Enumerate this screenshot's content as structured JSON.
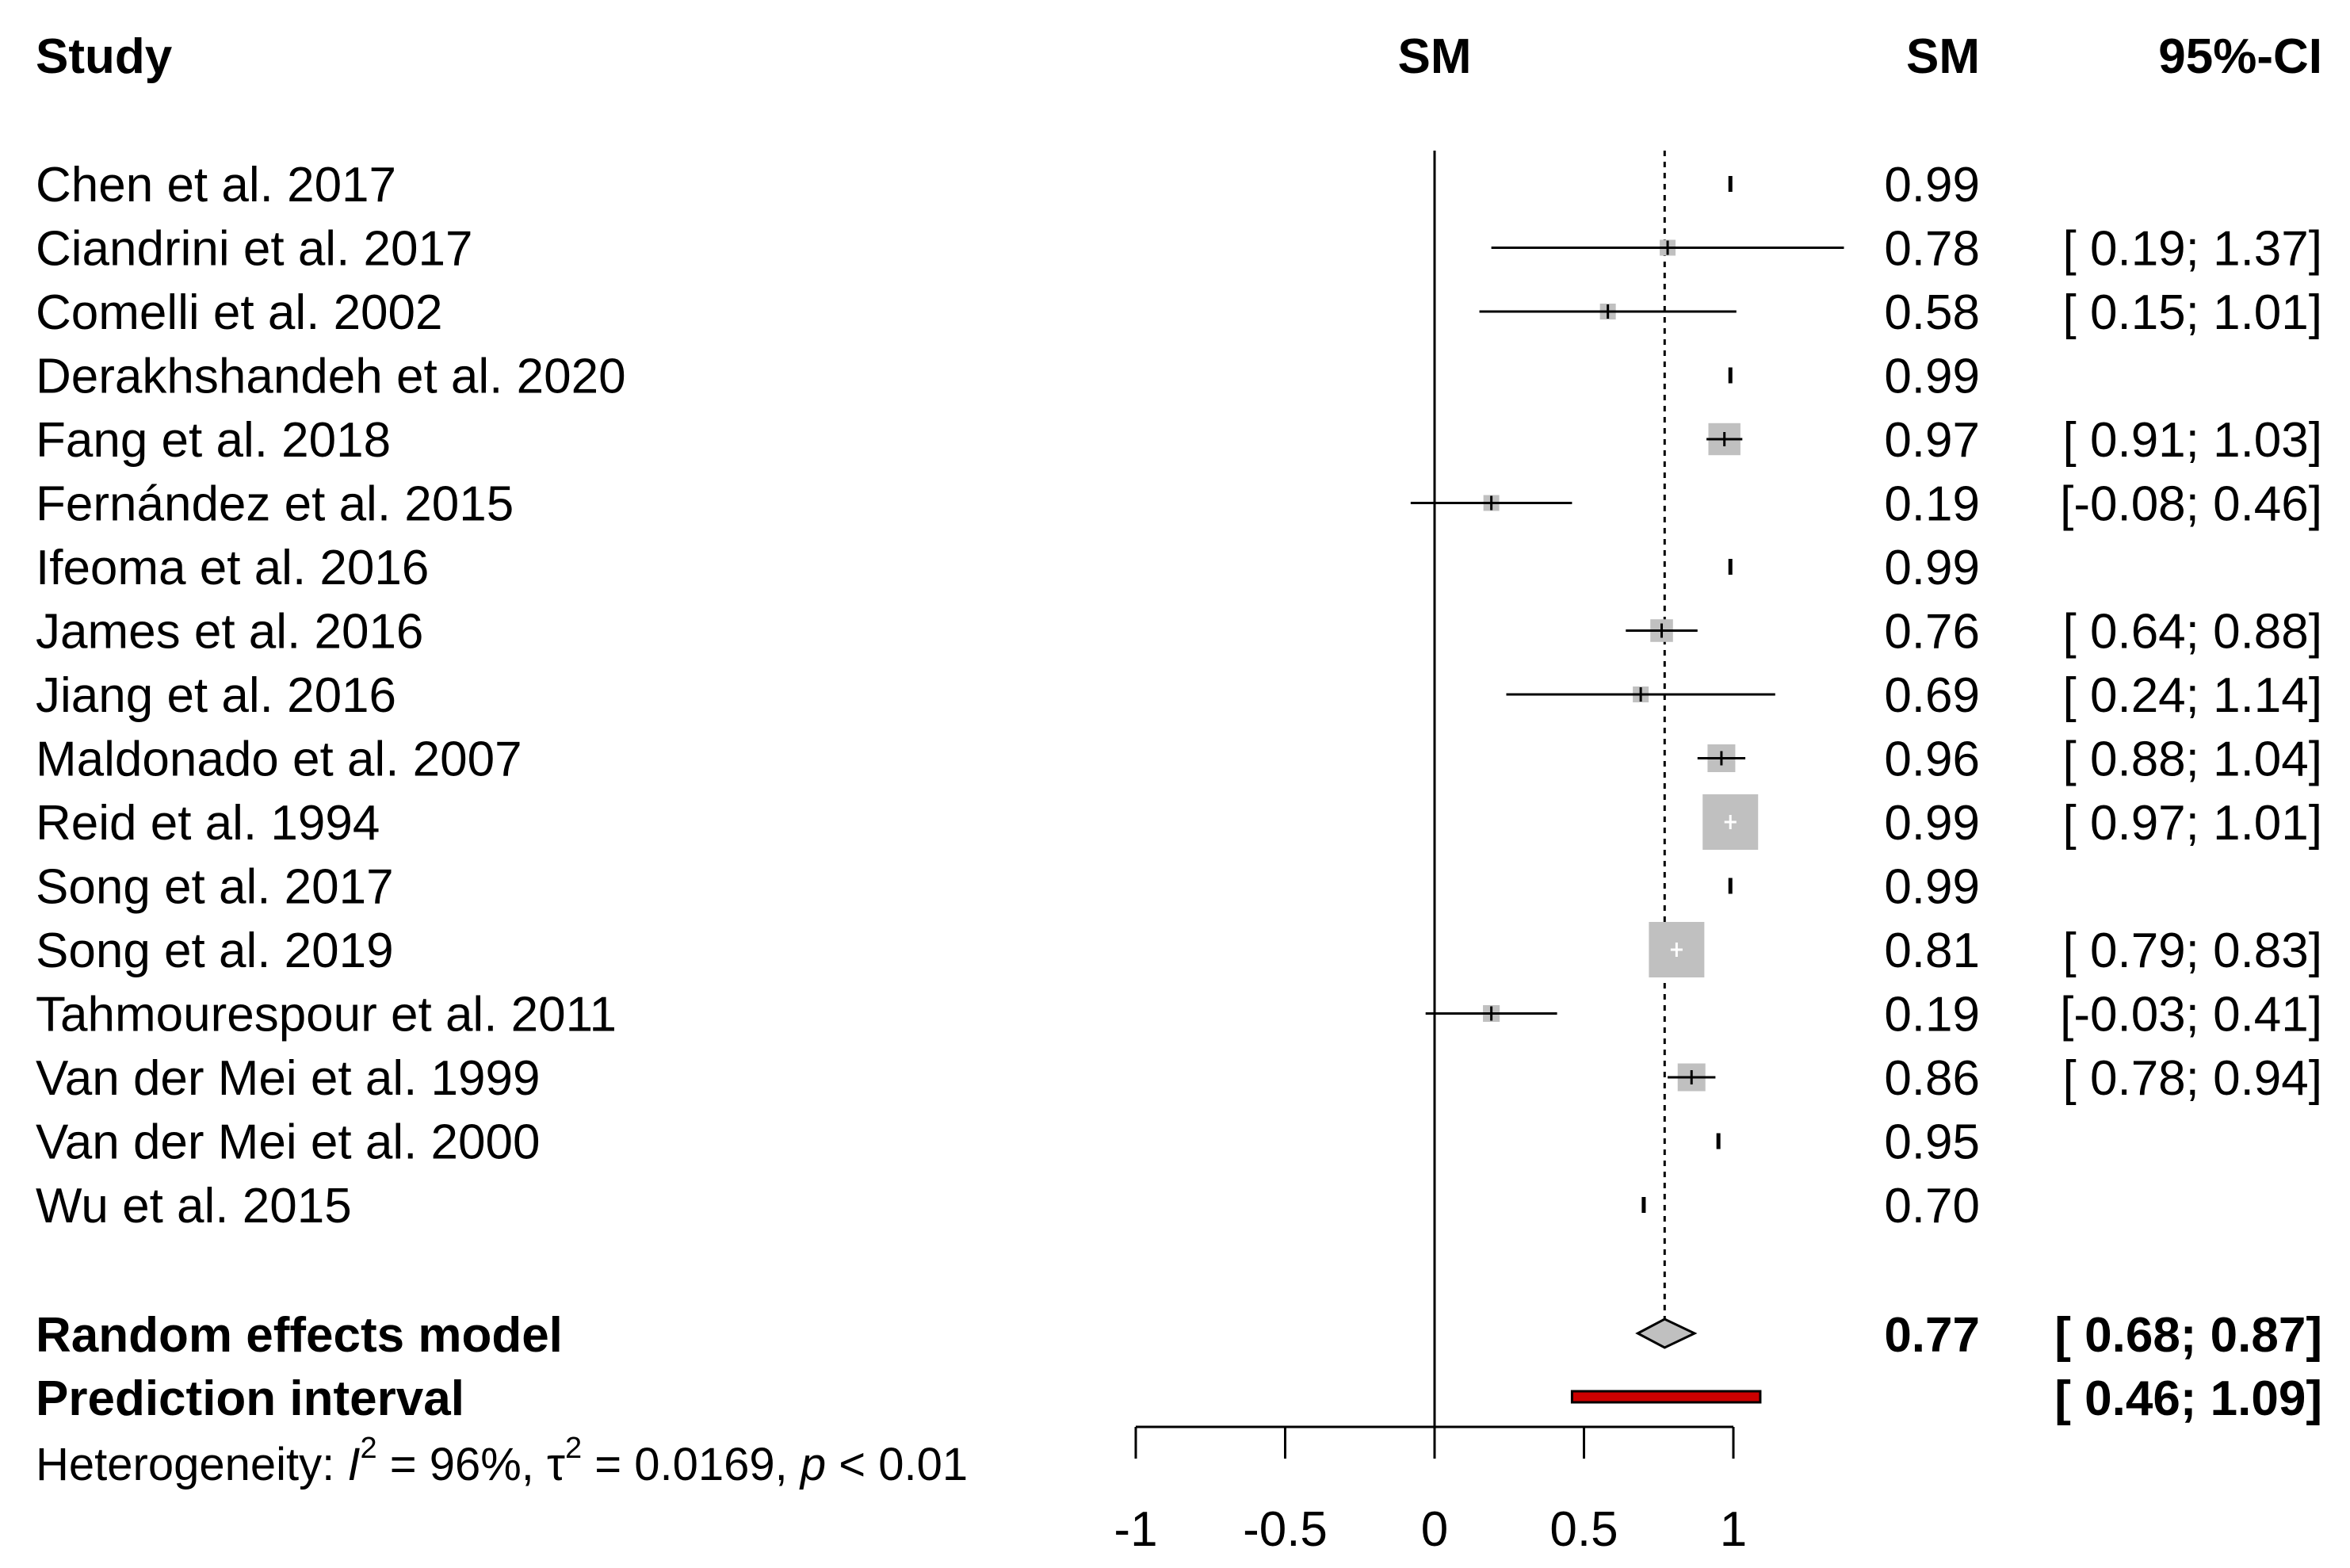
{
  "chart_data": {
    "type": "forest",
    "headers": {
      "study": "Study",
      "plot": "SM",
      "estimate": "SM",
      "ci": "95%-CI"
    },
    "studies": [
      {
        "label": "Chen et al. 2017",
        "est": 0.99,
        "lo": null,
        "hi": null,
        "est_text": "0.99",
        "ci_text": ""
      },
      {
        "label": "Ciandrini et al. 2017",
        "est": 0.78,
        "lo": 0.19,
        "hi": 1.37,
        "est_text": "0.78",
        "ci_text": "[ 0.19; 1.37]"
      },
      {
        "label": "Comelli et al. 2002",
        "est": 0.58,
        "lo": 0.15,
        "hi": 1.01,
        "est_text": "0.58",
        "ci_text": "[ 0.15; 1.01]"
      },
      {
        "label": "Derakhshandeh et al. 2020",
        "est": 0.99,
        "lo": null,
        "hi": null,
        "est_text": "0.99",
        "ci_text": ""
      },
      {
        "label": "Fang et al. 2018",
        "est": 0.97,
        "lo": 0.91,
        "hi": 1.03,
        "est_text": "0.97",
        "ci_text": "[ 0.91; 1.03]"
      },
      {
        "label": "Fernández et al. 2015",
        "est": 0.19,
        "lo": -0.08,
        "hi": 0.46,
        "est_text": "0.19",
        "ci_text": "[-0.08; 0.46]"
      },
      {
        "label": "Ifeoma et al. 2016",
        "est": 0.99,
        "lo": null,
        "hi": null,
        "est_text": "0.99",
        "ci_text": ""
      },
      {
        "label": "James et al. 2016",
        "est": 0.76,
        "lo": 0.64,
        "hi": 0.88,
        "est_text": "0.76",
        "ci_text": "[ 0.64; 0.88]"
      },
      {
        "label": "Jiang et al. 2016",
        "est": 0.69,
        "lo": 0.24,
        "hi": 1.14,
        "est_text": "0.69",
        "ci_text": "[ 0.24; 1.14]"
      },
      {
        "label": "Maldonado et al. 2007",
        "est": 0.96,
        "lo": 0.88,
        "hi": 1.04,
        "est_text": "0.96",
        "ci_text": "[ 0.88; 1.04]"
      },
      {
        "label": "Reid et al. 1994",
        "est": 0.99,
        "lo": 0.97,
        "hi": 1.01,
        "est_text": "0.99",
        "ci_text": "[ 0.97; 1.01]"
      },
      {
        "label": "Song et al. 2017",
        "est": 0.99,
        "lo": null,
        "hi": null,
        "est_text": "0.99",
        "ci_text": ""
      },
      {
        "label": "Song et al. 2019",
        "est": 0.81,
        "lo": 0.79,
        "hi": 0.83,
        "est_text": "0.81",
        "ci_text": "[ 0.79; 0.83]"
      },
      {
        "label": "Tahmourespour et al. 2011",
        "est": 0.19,
        "lo": -0.03,
        "hi": 0.41,
        "est_text": "0.19",
        "ci_text": "[-0.03; 0.41]"
      },
      {
        "label": "Van der Mei et al. 1999",
        "est": 0.86,
        "lo": 0.78,
        "hi": 0.94,
        "est_text": "0.86",
        "ci_text": "[ 0.78; 0.94]"
      },
      {
        "label": "Van der Mei et al. 2000",
        "est": 0.95,
        "lo": null,
        "hi": null,
        "est_text": "0.95",
        "ci_text": ""
      },
      {
        "label": "Wu et al. 2015",
        "est": 0.7,
        "lo": null,
        "hi": null,
        "est_text": "0.70",
        "ci_text": ""
      }
    ],
    "pooled": {
      "label": "Random effects model",
      "est": 0.77,
      "lo": 0.68,
      "hi": 0.87,
      "est_text": "0.77",
      "ci_text": "[ 0.68; 0.87]"
    },
    "prediction": {
      "label": "Prediction interval",
      "lo": 0.46,
      "hi": 1.09,
      "ci_text": "[ 0.46; 1.09]"
    },
    "heterogeneity": {
      "prefix": "Heterogeneity: ",
      "i2_symbol": "I",
      "i2_value": " = 96%, ",
      "tau_symbol": "τ",
      "tau_value": " = 0.0169, ",
      "p_symbol": "p",
      "p_value": " < 0.01",
      "sup": "2"
    },
    "xaxis": {
      "ticks": [
        -1,
        -0.5,
        0,
        0.5,
        1
      ],
      "tick_labels": [
        "-1",
        "-0.5",
        "0",
        "0.5",
        "1"
      ],
      "xlim": [
        -1,
        1
      ],
      "null_line": 0,
      "reference_line": 0.77
    },
    "colors": {
      "box": "#c0c0c0",
      "prediction_bar": "#cc0000",
      "diamond": "#c0c0c0"
    }
  }
}
